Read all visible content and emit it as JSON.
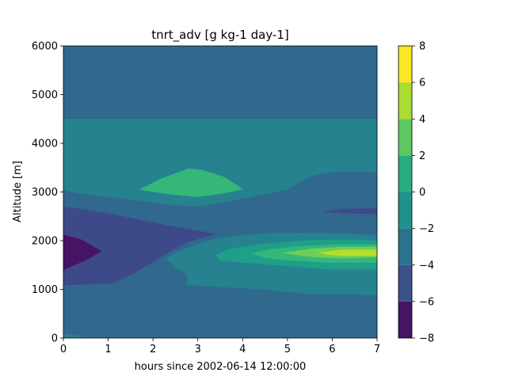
{
  "chart_data": {
    "type": "contour",
    "title": "tnrt_adv [g kg-1 day-1]",
    "xlabel": "hours since 2002-06-14 12:00:00",
    "ylabel": "Altitude [m]",
    "xlim": [
      0,
      7
    ],
    "ylim": [
      0,
      6000
    ],
    "x_ticks": [
      "0",
      "1",
      "2",
      "3",
      "4",
      "5",
      "6",
      "7"
    ],
    "y_ticks": [
      "0",
      "1000",
      "2000",
      "3000",
      "4000",
      "5000",
      "6000"
    ],
    "colorbar": {
      "levels": [
        -8,
        -6,
        -4,
        -2,
        0,
        2,
        4,
        6,
        8
      ],
      "tick_labels": [
        "−8",
        "−6",
        "−4",
        "−2",
        "0",
        "2",
        "4",
        "6",
        "8"
      ],
      "colors": [
        "#471365",
        "#3b518b",
        "#2c718e",
        "#21918c",
        "#27ad81",
        "#5ec962",
        "#aadc32",
        "#fde725"
      ]
    },
    "band_colors": [
      "#471365",
      "#3e4989",
      "#31688e",
      "#26828e",
      "#1f9e89",
      "#35b779",
      "#6ece58",
      "#b5de2b"
    ],
    "regions": [
      {
        "level": 2,
        "points": [
          [
            0,
            0
          ],
          [
            7,
            0
          ],
          [
            7,
            6000
          ],
          [
            0,
            6000
          ]
        ]
      },
      {
        "level": 3,
        "points": [
          [
            0,
            3050
          ],
          [
            0.3,
            2980
          ],
          [
            1.3,
            2870
          ],
          [
            2.5,
            2730
          ],
          [
            3.0,
            2700
          ],
          [
            3.5,
            2770
          ],
          [
            5.0,
            3050
          ],
          [
            5.5,
            3320
          ],
          [
            6.0,
            3420
          ],
          [
            7,
            3420
          ],
          [
            7,
            4500
          ],
          [
            0,
            4500
          ]
        ]
      },
      {
        "level": 5,
        "points": [
          [
            1.7,
            3050
          ],
          [
            2.2,
            3280
          ],
          [
            2.8,
            3480
          ],
          [
            3.1,
            3450
          ],
          [
            3.6,
            3300
          ],
          [
            4.0,
            3060
          ],
          [
            3.6,
            2980
          ],
          [
            3.0,
            2900
          ],
          [
            2.4,
            2950
          ]
        ]
      },
      {
        "level": 2,
        "points": [
          [
            0,
            2950
          ],
          [
            0.5,
            2880
          ],
          [
            1.5,
            2750
          ],
          [
            3.0,
            2640
          ],
          [
            4.5,
            2760
          ],
          [
            5.5,
            2860
          ],
          [
            6.0,
            2900
          ],
          [
            7,
            2900
          ],
          [
            7,
            2000
          ],
          [
            6.0,
            2080
          ],
          [
            5.0,
            2160
          ],
          [
            4.0,
            2080
          ],
          [
            3.0,
            1900
          ],
          [
            2.0,
            1600
          ],
          [
            1.5,
            1300
          ],
          [
            1.0,
            1100
          ],
          [
            0,
            1050
          ]
        ]
      },
      {
        "level": 1,
        "points": [
          [
            0,
            2700
          ],
          [
            1.0,
            2560
          ],
          [
            2.5,
            2280
          ],
          [
            3.4,
            2140
          ],
          [
            2.8,
            1980
          ],
          [
            2.3,
            1740
          ],
          [
            2.0,
            1560
          ],
          [
            1.6,
            1350
          ],
          [
            1.1,
            1120
          ],
          [
            0,
            1040
          ]
        ]
      },
      {
        "level": 0,
        "points": [
          [
            0,
            2120
          ],
          [
            0.4,
            2020
          ],
          [
            0.85,
            1780
          ],
          [
            0.5,
            1600
          ],
          [
            0,
            1400
          ]
        ]
      },
      {
        "level": 1,
        "points": [
          [
            5.8,
            2580
          ],
          [
            6.2,
            2650
          ],
          [
            7,
            2660
          ],
          [
            7,
            2550
          ],
          [
            6.2,
            2570
          ]
        ]
      },
      {
        "level": 2,
        "points": [
          [
            0,
            1080
          ],
          [
            1.0,
            1110
          ],
          [
            1.5,
            1200
          ],
          [
            1.8,
            1250
          ],
          [
            1.9,
            1150
          ],
          [
            1.9,
            1050
          ],
          [
            2.1,
            980
          ],
          [
            2.5,
            970
          ],
          [
            2.8,
            850
          ],
          [
            3.0,
            750
          ],
          [
            4.0,
            720
          ],
          [
            5.0,
            620
          ],
          [
            5.5,
            550
          ],
          [
            5.5,
            0
          ],
          [
            0,
            0
          ]
        ]
      },
      {
        "level": 3,
        "points": [
          [
            2.3,
            1630
          ],
          [
            2.5,
            1750
          ],
          [
            3.0,
            1930
          ],
          [
            3.5,
            2060
          ],
          [
            4.5,
            2150
          ],
          [
            5.5,
            2160
          ],
          [
            6.5,
            2140
          ],
          [
            7,
            2100
          ],
          [
            7,
            890
          ],
          [
            5.5,
            900
          ],
          [
            4.5,
            1000
          ],
          [
            3.5,
            1050
          ],
          [
            2.7,
            1100
          ],
          [
            2.8,
            1200
          ],
          [
            2.7,
            1360
          ],
          [
            2.5,
            1450
          ]
        ]
      },
      {
        "level": 4,
        "points": [
          [
            3.4,
            1700
          ],
          [
            3.7,
            1830
          ],
          [
            4.5,
            1940
          ],
          [
            5.5,
            2010
          ],
          [
            6.5,
            2020
          ],
          [
            7,
            2000
          ],
          [
            7,
            1410
          ],
          [
            6.0,
            1410
          ],
          [
            5.0,
            1480
          ],
          [
            4.0,
            1550
          ],
          [
            3.5,
            1600
          ]
        ]
      },
      {
        "level": 5,
        "points": [
          [
            4.2,
            1740
          ],
          [
            4.6,
            1820
          ],
          [
            5.2,
            1880
          ],
          [
            6.0,
            1920
          ],
          [
            7,
            1920
          ],
          [
            7,
            1550
          ],
          [
            6.0,
            1550
          ],
          [
            5.0,
            1600
          ],
          [
            4.5,
            1650
          ]
        ]
      },
      {
        "level": 6,
        "points": [
          [
            4.9,
            1750
          ],
          [
            5.5,
            1830
          ],
          [
            6.2,
            1870
          ],
          [
            7,
            1870
          ],
          [
            7,
            1660
          ],
          [
            6.2,
            1640
          ],
          [
            5.5,
            1670
          ]
        ]
      },
      {
        "level": 7,
        "points": [
          [
            5.7,
            1760
          ],
          [
            6.2,
            1810
          ],
          [
            7,
            1810
          ],
          [
            7,
            1690
          ],
          [
            6.3,
            1690
          ],
          [
            5.9,
            1710
          ]
        ]
      },
      {
        "level": 3,
        "points": [
          [
            0,
            0
          ],
          [
            0.4,
            0
          ],
          [
            0.35,
            40
          ],
          [
            0.1,
            80
          ],
          [
            0,
            70
          ]
        ]
      }
    ]
  }
}
